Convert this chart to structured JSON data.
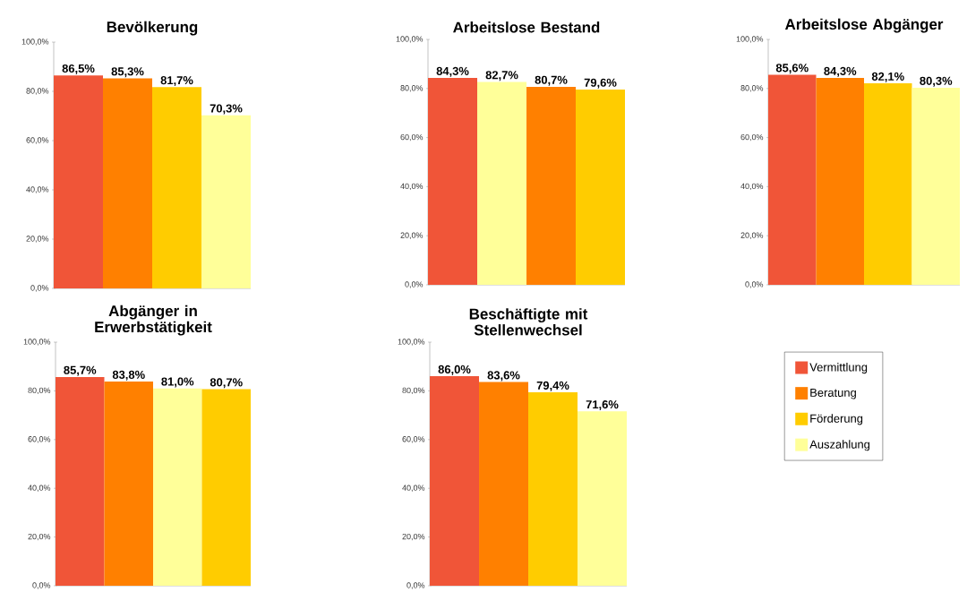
{
  "chart_data": [
    {
      "type": "bar",
      "title": "Bevölkerung",
      "categories": [
        null
      ],
      "ylim": [
        0,
        100
      ],
      "yticks": [
        {
          "value": 0,
          "label": "0,0%"
        },
        {
          "value": 20,
          "label": "20,0%"
        },
        {
          "value": 40,
          "label": "40,0%"
        },
        {
          "value": 60,
          "label": "60,0%"
        },
        {
          "value": 80,
          "label": "80,0%"
        },
        {
          "value": 100,
          "label": "100,0%"
        }
      ],
      "series": [
        {
          "color": "#f05538",
          "values": [
            86.5
          ],
          "value_labels": [
            "86,5%"
          ]
        },
        {
          "color": "#ff8000",
          "values": [
            85.3
          ],
          "value_labels": [
            "85,3%"
          ]
        },
        {
          "color": "#ffcc00",
          "values": [
            81.7
          ],
          "value_labels": [
            "81,7%"
          ]
        },
        {
          "color": "#ffff99",
          "values": [
            70.3
          ],
          "value_labels": [
            "70,3%"
          ]
        }
      ]
    },
    {
      "type": "bar",
      "title": "Arbeitslose Bestand",
      "categories": [
        null
      ],
      "ylim": [
        0,
        100
      ],
      "yticks": [
        {
          "value": 0,
          "label": "0,0%"
        },
        {
          "value": 20,
          "label": "20,0%"
        },
        {
          "value": 40,
          "label": "40,0%"
        },
        {
          "value": 60,
          "label": "60,0%"
        },
        {
          "value": 80,
          "label": "80,0%"
        },
        {
          "value": 100,
          "label": "100,0%"
        }
      ],
      "series": [
        {
          "color": "#f05538",
          "values": [
            84.3
          ],
          "value_labels": [
            "84,3%"
          ]
        },
        {
          "color": "#ffff99",
          "values": [
            82.7
          ],
          "value_labels": [
            "82,7%"
          ]
        },
        {
          "color": "#ff8000",
          "values": [
            80.7
          ],
          "value_labels": [
            "80,7%"
          ]
        },
        {
          "color": "#ffcc00",
          "values": [
            79.6
          ],
          "value_labels": [
            "79,6%"
          ]
        }
      ]
    },
    {
      "type": "bar",
      "title": "Arbeitslose Abgänger",
      "categories": [
        null
      ],
      "ylim": [
        0,
        100
      ],
      "yticks": [
        {
          "value": 0,
          "label": "0,0%"
        },
        {
          "value": 20,
          "label": "20,0%"
        },
        {
          "value": 40,
          "label": "40,0%"
        },
        {
          "value": 60,
          "label": "60,0%"
        },
        {
          "value": 80,
          "label": "80,0%"
        },
        {
          "value": 100,
          "label": "100,0%"
        }
      ],
      "series": [
        {
          "color": "#f05538",
          "values": [
            85.6
          ],
          "value_labels": [
            "85,6%"
          ]
        },
        {
          "color": "#ff8000",
          "values": [
            84.3
          ],
          "value_labels": [
            "84,3%"
          ]
        },
        {
          "color": "#ffcc00",
          "values": [
            82.1
          ],
          "value_labels": [
            "82,1%"
          ]
        },
        {
          "color": "#ffff99",
          "values": [
            80.3
          ],
          "value_labels": [
            "80,3%"
          ]
        }
      ]
    },
    {
      "type": "bar",
      "title": "Abgänger in Erwerbstätigkeit",
      "categories": [
        null
      ],
      "ylim": [
        0,
        100
      ],
      "yticks": [
        {
          "value": 0,
          "label": "0,0%"
        },
        {
          "value": 20,
          "label": "20,0%"
        },
        {
          "value": 40,
          "label": "40,0%"
        },
        {
          "value": 60,
          "label": "60,0%"
        },
        {
          "value": 80,
          "label": "80,0%"
        },
        {
          "value": 100,
          "label": "100,0%"
        }
      ],
      "series": [
        {
          "color": "#f05538",
          "values": [
            85.7
          ],
          "value_labels": [
            "85,7%"
          ]
        },
        {
          "color": "#ff8000",
          "values": [
            83.8
          ],
          "value_labels": [
            "83,8%"
          ]
        },
        {
          "color": "#ffff99",
          "values": [
            81.0
          ],
          "value_labels": [
            "81,0%"
          ]
        },
        {
          "color": "#ffcc00",
          "values": [
            80.7
          ],
          "value_labels": [
            "80,7%"
          ]
        }
      ]
    },
    {
      "type": "bar",
      "title": "Beschäftigte mit Stellenwechsel",
      "categories": [
        null
      ],
      "ylim": [
        0,
        100
      ],
      "yticks": [
        {
          "value": 0,
          "label": "0,0%"
        },
        {
          "value": 20,
          "label": "20,0%"
        },
        {
          "value": 40,
          "label": "40,0%"
        },
        {
          "value": 60,
          "label": "60,0%"
        },
        {
          "value": 80,
          "label": "80,0%"
        },
        {
          "value": 100,
          "label": "100,0%"
        }
      ],
      "legend": "right",
      "series": [
        {
          "name": "Vermittlung",
          "color": "#f05538",
          "values": [
            86.0
          ],
          "value_labels": [
            "86,0%"
          ]
        },
        {
          "name": "Beratung",
          "color": "#ff8000",
          "values": [
            83.6
          ],
          "value_labels": [
            "83,6%"
          ]
        },
        {
          "name": "Förderung",
          "color": "#ffcc00",
          "values": [
            79.4
          ],
          "value_labels": [
            "79,4%"
          ]
        },
        {
          "name": "Auszahlung",
          "color": "#ffff99",
          "values": [
            71.6
          ],
          "value_labels": [
            "71,6%"
          ]
        }
      ]
    }
  ]
}
